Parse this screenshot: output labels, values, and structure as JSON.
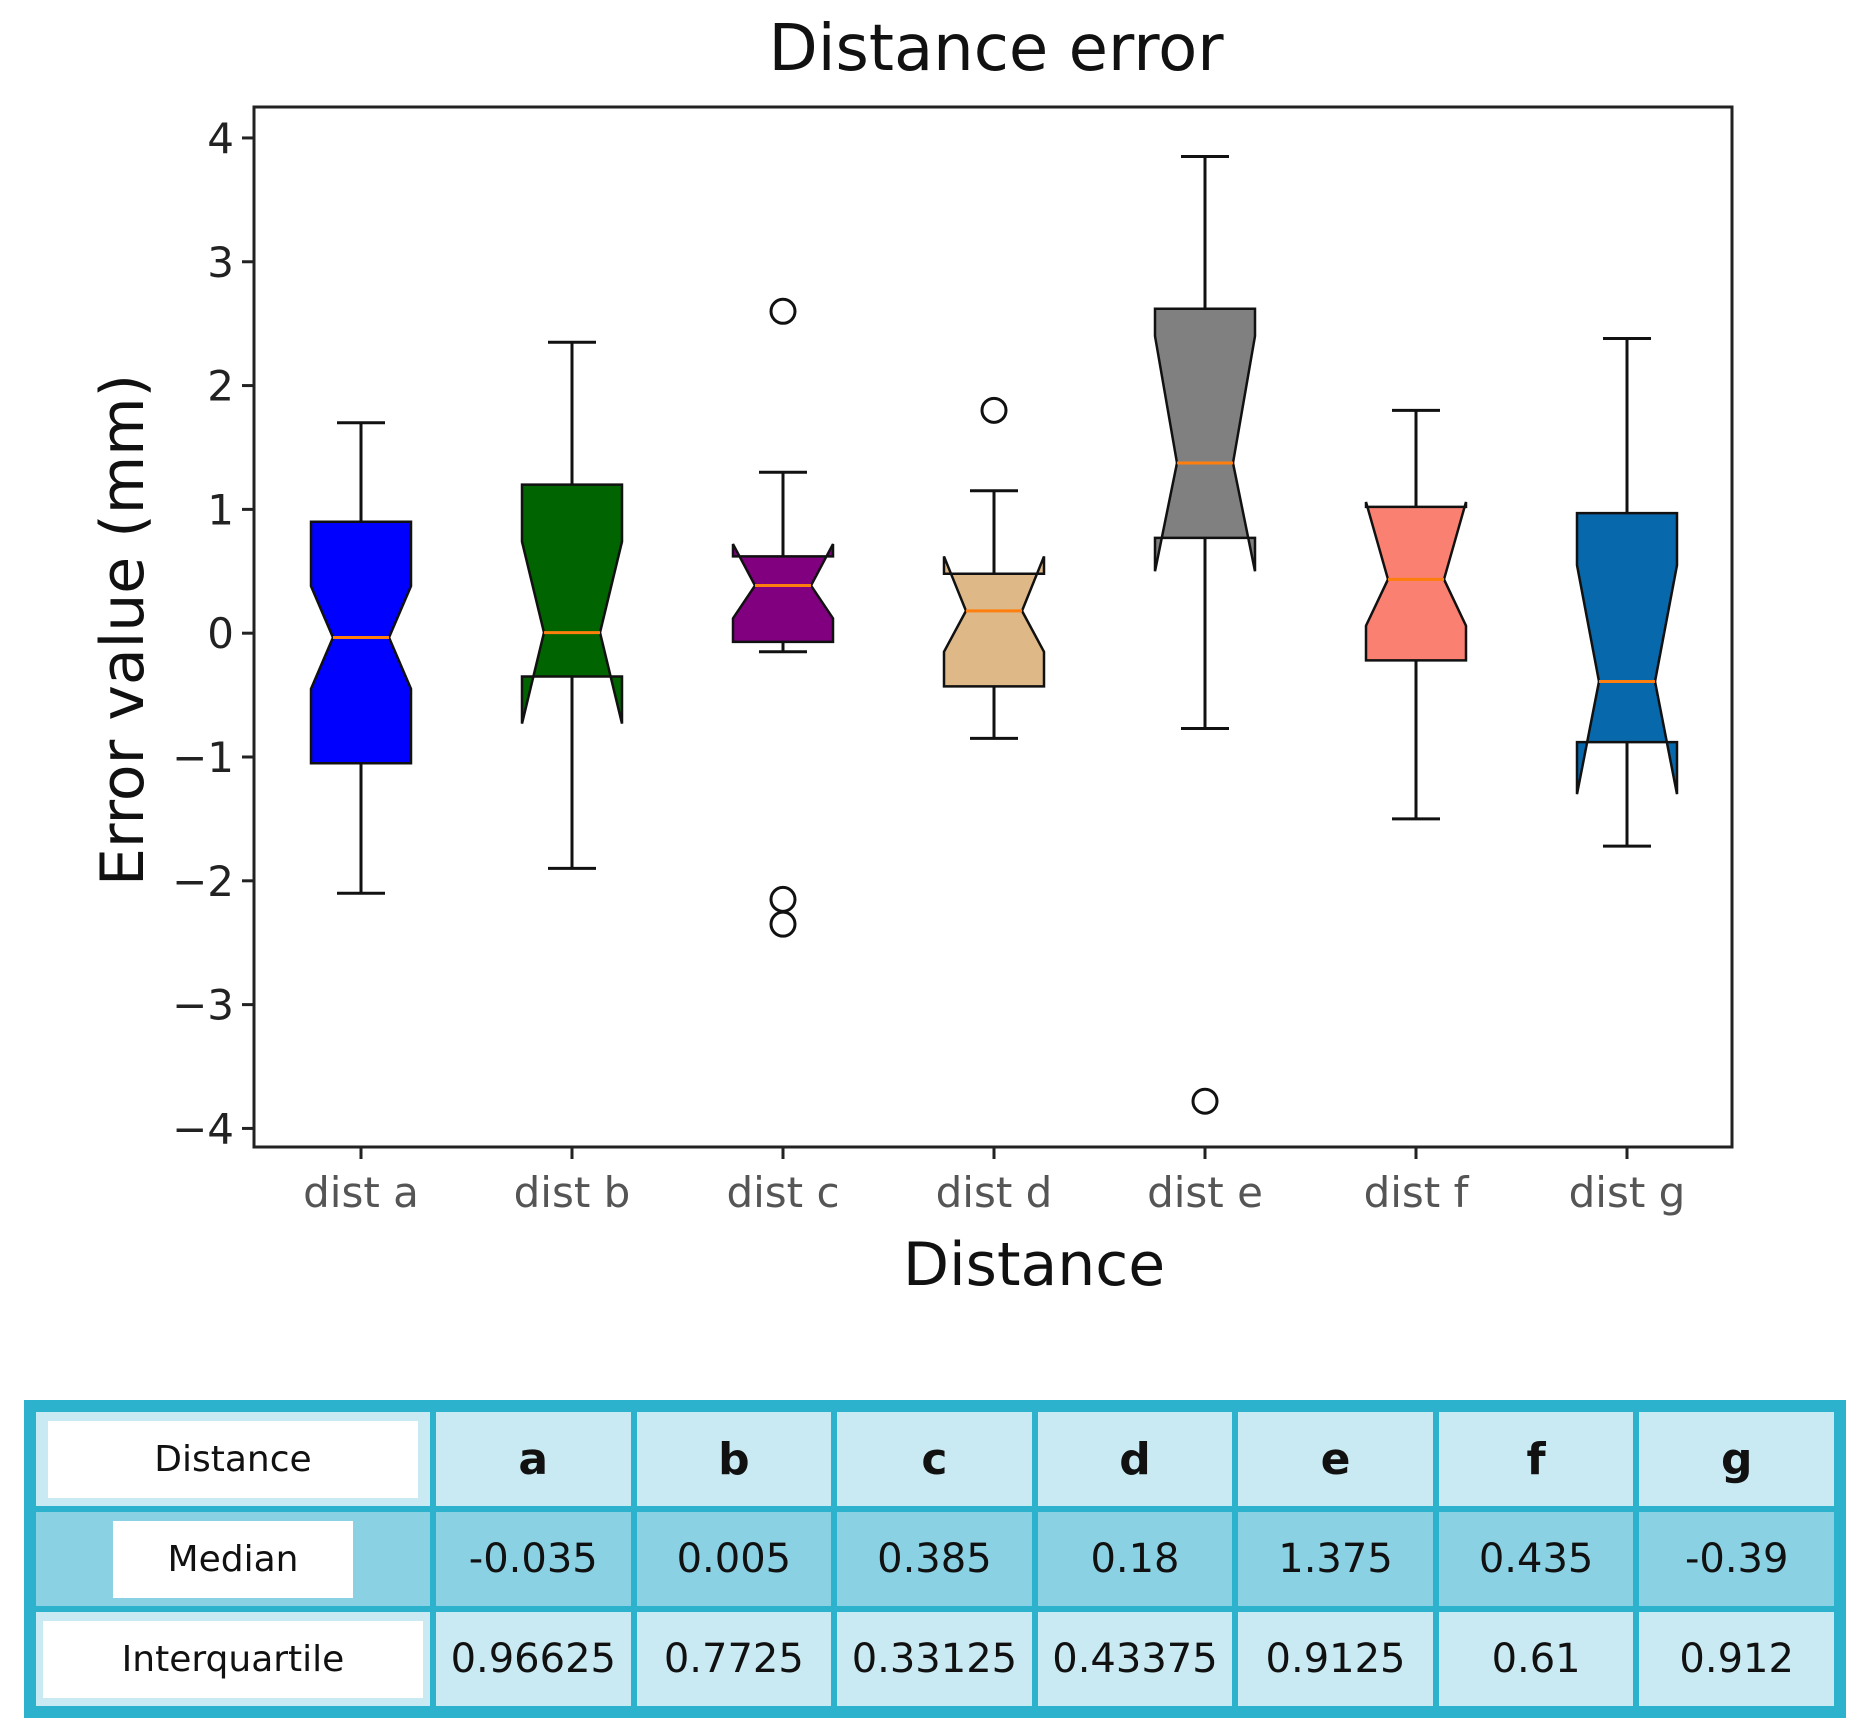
{
  "chart_data": {
    "type": "boxplot",
    "notched": true,
    "title": "Distance error",
    "xlabel": "Distance",
    "ylabel": "Error value (mm)",
    "ylim": [
      -4.15,
      4.25
    ],
    "yticks": [
      4,
      3,
      2,
      1,
      0,
      -1,
      -2,
      -3,
      -4
    ],
    "ytick_labels": [
      "4",
      "3",
      "2",
      "1",
      "0",
      "−1",
      "−2",
      "−3",
      "−4"
    ],
    "categories": [
      "dist a",
      "dist b",
      "dist c",
      "dist d",
      "dist e",
      "dist f",
      "dist g"
    ],
    "series": [
      {
        "name": "dist a",
        "color": "#0000ff",
        "whisker_low": -2.1,
        "q1": -1.05,
        "median": -0.035,
        "q3": 0.9,
        "whisker_high": 1.7,
        "notch_low": -0.45,
        "notch_high": 0.38,
        "outliers": []
      },
      {
        "name": "dist b",
        "color": "#006400",
        "whisker_low": -1.9,
        "q1": -0.35,
        "median": 0.005,
        "q3": 1.2,
        "whisker_high": 2.35,
        "notch_low": -0.73,
        "notch_high": 0.74,
        "outliers": []
      },
      {
        "name": "dist c",
        "color": "#800080",
        "whisker_low": -0.15,
        "q1": -0.07,
        "median": 0.385,
        "q3": 0.62,
        "whisker_high": 1.3,
        "notch_low": 0.12,
        "notch_high": 0.72,
        "outliers": [
          2.6,
          -2.15,
          -2.35
        ]
      },
      {
        "name": "dist d",
        "color": "#deb887",
        "whisker_low": -0.85,
        "q1": -0.43,
        "median": 0.18,
        "q3": 0.48,
        "whisker_high": 1.15,
        "notch_low": -0.15,
        "notch_high": 0.62,
        "outliers": [
          1.8
        ]
      },
      {
        "name": "dist e",
        "color": "#808080",
        "whisker_low": -0.77,
        "q1": 0.77,
        "median": 1.375,
        "q3": 2.62,
        "whisker_high": 3.85,
        "notch_low": 0.5,
        "notch_high": 2.4,
        "outliers": [
          -3.78
        ]
      },
      {
        "name": "dist f",
        "color": "#fa8072",
        "whisker_low": -1.5,
        "q1": -0.22,
        "median": 0.435,
        "q3": 1.02,
        "whisker_high": 1.8,
        "notch_low": 0.06,
        "notch_high": 1.06,
        "outliers": []
      },
      {
        "name": "dist g",
        "color": "#0868ac",
        "whisker_low": -1.72,
        "q1": -0.88,
        "median": -0.39,
        "q3": 0.97,
        "whisker_high": 2.38,
        "notch_low": -1.3,
        "notch_high": 0.55,
        "outliers": []
      }
    ],
    "median_color": "#ff7f0e"
  },
  "table": {
    "header_label": "Distance",
    "columns": [
      "a",
      "b",
      "c",
      "d",
      "e",
      "f",
      "g"
    ],
    "rows": [
      {
        "label": "Median",
        "values": [
          "-0.035",
          "0.005",
          "0.385",
          "0.18",
          "1.375",
          "0.435",
          "-0.39"
        ]
      },
      {
        "label": "Interquartile",
        "values": [
          "0.96625",
          "0.7725",
          "0.33125",
          "0.43375",
          "0.9125",
          "0.61",
          "0.912"
        ]
      }
    ]
  }
}
